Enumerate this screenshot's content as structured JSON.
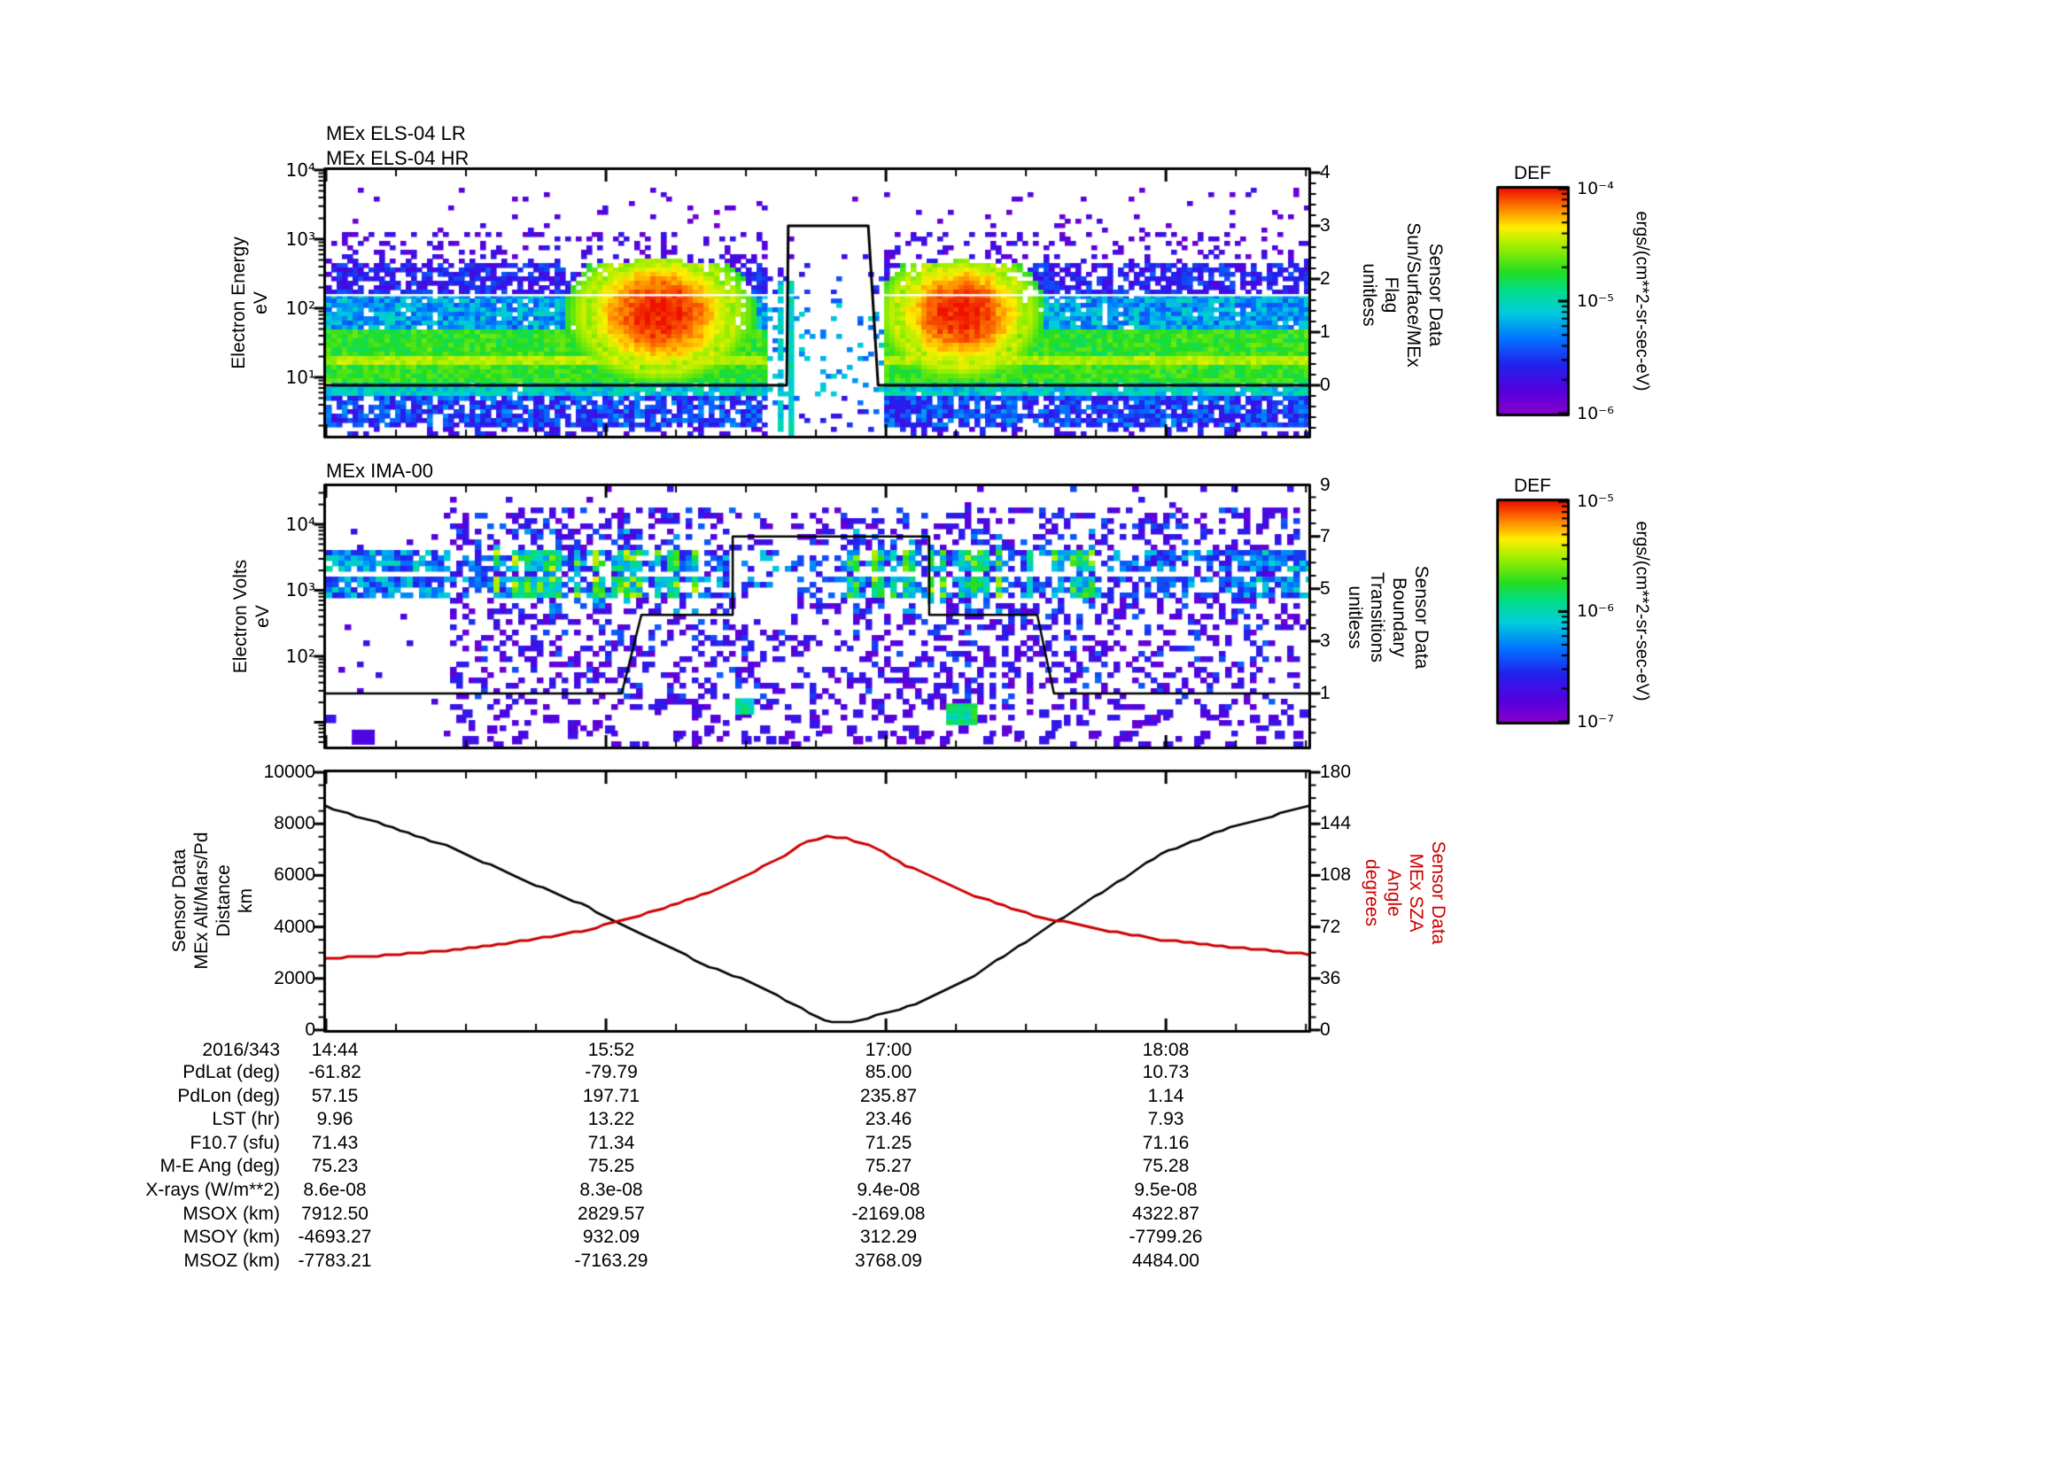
{
  "window": {
    "background": "#ffffff",
    "accent_red": "#cc0000"
  },
  "panels": {
    "els": {
      "title_lines": [
        "MEx ELS-04 LR",
        "MEx ELS-04 HR"
      ],
      "ylabel_lines": [
        "Electron Energy",
        "eV"
      ],
      "ytick_labels": [
        "10⁴",
        "10³",
        "10²",
        "10¹"
      ],
      "right_axis_labels": [
        "4",
        "3",
        "2",
        "1",
        "0"
      ],
      "right_label_lines": [
        "Sensor Data",
        "Sun/Surface/MEx",
        "Flag",
        "unitless"
      ]
    },
    "ima": {
      "title_lines": [
        "MEx IMA-00"
      ],
      "ylabel_lines": [
        "Electron Volts",
        "eV"
      ],
      "ytick_labels": [
        "10⁴",
        "10³",
        "10²"
      ],
      "right_axis_labels": [
        "9",
        "7",
        "5",
        "3",
        "1"
      ],
      "right_label_lines": [
        "Sensor Data",
        "Boundary",
        "Transitions",
        "unitless"
      ]
    },
    "ephemeris": {
      "ylabel_lines": [
        "Sensor Data",
        "MEx Alt/Mars/Pd",
        "Distance",
        "km"
      ],
      "ytick_labels": [
        "10000",
        "8000",
        "6000",
        "4000",
        "2000",
        "0"
      ],
      "right_axis_labels": [
        "180",
        "144",
        "108",
        "72",
        "36",
        "0"
      ],
      "right_label_lines": [
        "Sensor Data",
        "MEx SZA",
        "Angle",
        "degrees"
      ],
      "right_label_color": "#cc0000"
    }
  },
  "colorbars": [
    {
      "title": "DEF",
      "tick_labels": [
        "10⁻⁴",
        "10⁻⁵",
        "10⁻⁶"
      ],
      "unit_label": "ergs/(cm**2-sr-sec-eV)"
    },
    {
      "title": "DEF",
      "tick_labels": [
        "10⁻⁵",
        "10⁻⁶",
        "10⁻⁷"
      ],
      "unit_label": "ergs/(cm**2-sr-sec-eV)"
    }
  ],
  "time_axis": {
    "date_label": "2016/343",
    "tick_labels": [
      "14:44",
      "15:52",
      "17:00",
      "18:08"
    ]
  },
  "ephemeris_table": {
    "row_labels": [
      "PdLat (deg)",
      "PdLon (deg)",
      "LST (hr)",
      "F10.7 (sfu)",
      "M-E Ang (deg)",
      "X-rays (W/m**2)",
      "MSOX (km)",
      "MSOY (km)",
      "MSOZ (km)"
    ],
    "columns": [
      {
        "time": "14:44",
        "values": [
          "-61.82",
          "57.15",
          "9.96",
          "71.43",
          "75.23",
          "8.6e-08",
          "7912.50",
          "-4693.27",
          "-7783.21"
        ]
      },
      {
        "time": "15:52",
        "values": [
          "-79.79",
          "197.71",
          "13.22",
          "71.34",
          "75.25",
          "8.3e-08",
          "2829.57",
          "932.09",
          "-7163.29"
        ]
      },
      {
        "time": "17:00",
        "values": [
          "85.00",
          "235.87",
          "23.46",
          "71.25",
          "75.27",
          "9.4e-08",
          "-2169.08",
          "312.29",
          "3768.09"
        ]
      },
      {
        "time": "18:08",
        "values": [
          "10.73",
          "1.14",
          "7.93",
          "71.16",
          "75.28",
          "9.5e-08",
          "4322.87",
          "-7799.26",
          "4484.00"
        ]
      }
    ]
  },
  "chart_data": [
    {
      "type": "heatmap",
      "title": "MEx ELS-04 LR",
      "subtitle": "MEx ELS-04 HR",
      "ylabel": "Electron Energy eV",
      "yscale": "log",
      "ytick_values": [
        10000,
        1000,
        100,
        10
      ],
      "x_start": "2016/343 14:44",
      "x_ticks": [
        "14:44",
        "15:52",
        "17:00",
        "18:08"
      ],
      "colorbar": {
        "title": "DEF",
        "unit": "ergs/(cm**2-sr-sec-eV)",
        "min": 1e-06,
        "max": 0.0001
      },
      "description": "Electron energy-time spectrogram: continuous green flux band ~3-100 eV, red enhancements (~1e-4) near 15:45-16:10 and 16:55-17:20 at 30-120 eV, data gap ~16:35-16:55, scattered violet counts up to ~1 keV, thin white line near 150 eV",
      "overlay": {
        "name": "Sensor Data Sun/Surface/MEx Flag",
        "unit": "unitless",
        "axis_range": [
          0,
          4
        ],
        "points_fraction_value": [
          [
            0,
            0
          ],
          [
            0.469,
            0
          ],
          [
            0.4705,
            3
          ],
          [
            0.552,
            3
          ],
          [
            0.562,
            0
          ],
          [
            1,
            0
          ]
        ]
      },
      "render": {
        "cell": [
          6,
          5
        ],
        "bands": [
          {
            "t": [
              0.965,
              1.0
            ],
            "d": 0.25,
            "v": [
              0.08,
              0.26
            ]
          },
          {
            "t": [
              0.855,
              0.965
            ],
            "d": 0.78,
            "v": [
              0.14,
              0.38
            ]
          },
          {
            "t": [
              0.805,
              0.855
            ],
            "d": 0.95,
            "v": [
              0.38,
              0.55
            ]
          },
          {
            "t": [
              0.6,
              0.805
            ],
            "d": 1.0,
            "v": [
              0.58,
              0.7
            ]
          },
          {
            "t": [
              0.695,
              0.74
            ],
            "d": 1.0,
            "v": [
              0.72,
              0.8
            ]
          },
          {
            "t": [
              0.465,
              0.6
            ],
            "d": 0.96,
            "v": [
              0.28,
              0.5
            ]
          },
          {
            "t": [
              0.355,
              0.465
            ],
            "d": 0.7,
            "v": [
              0.1,
              0.3
            ]
          },
          {
            "t": [
              0.235,
              0.355
            ],
            "d": 0.22,
            "v": [
              0.05,
              0.2
            ]
          },
          {
            "t": [
              0.06,
              0.235
            ],
            "d": 0.045,
            "v": [
              0.04,
              0.16
            ]
          }
        ],
        "blobs": [
          {
            "f": 0.34,
            "t": 0.54,
            "rf": 0.075,
            "rt": 0.21
          },
          {
            "f": 0.646,
            "t": 0.54,
            "rf": 0.066,
            "rt": 0.2
          }
        ],
        "gap": {
          "f": [
            0.448,
            0.568
          ],
          "keep": 0.13,
          "streaks": [
            0.462,
            0.474
          ]
        },
        "white_line_t": 0.467
      }
    },
    {
      "type": "heatmap",
      "title": "MEx IMA-00",
      "ylabel": "Electron Volts eV",
      "yscale": "log",
      "ytick_values": [
        10000,
        1000,
        100
      ],
      "colorbar": {
        "title": "DEF",
        "unit": "ergs/(cm**2-sr-sec-eV)",
        "min": 1e-07,
        "max": 1e-05
      },
      "description": "Ion energy-time spectrogram: sparse violet counts over most of interval, persistent 1-3.5 keV horizontal band with cyan/green vertical streaks, banded flux strips at both time edges, chunky violet blocks at lowest energies",
      "overlay": {
        "name": "Sensor Data Boundary Transitions",
        "unit": "unitless",
        "axis_range": [
          0,
          9
        ],
        "points_fraction_value": [
          [
            0,
            1
          ],
          [
            0.301,
            1
          ],
          [
            0.321,
            4
          ],
          [
            0.414,
            4
          ],
          [
            0.414,
            7
          ],
          [
            0.614,
            7
          ],
          [
            0.614,
            4
          ],
          [
            0.724,
            4
          ],
          [
            0.741,
            1
          ],
          [
            1,
            1
          ]
        ]
      },
      "render": {
        "cell": [
          7,
          6
        ],
        "field": {
          "f": [
            0.128,
            0.985
          ],
          "d": 0.33,
          "v": [
            0.05,
            0.22
          ]
        },
        "bands": [
          {
            "t": [
              0.24,
              0.325
            ]
          },
          {
            "t": [
              0.35,
              0.425
            ]
          }
        ],
        "edge_strips": {
          "left_end": 0.128,
          "right_start": 0.925,
          "d": 0.85,
          "v": [
            0.2,
            0.52
          ]
        },
        "band_boost": {
          "d": 0.25,
          "v": [
            0.12,
            0.45
          ]
        },
        "streaks": {
          "regions": [
            [
              0.17,
              0.38
            ],
            [
              0.52,
              0.8
            ]
          ],
          "prob": 0.5,
          "t": [
            0.16,
            0.5
          ],
          "v": [
            0.35,
            0.88
          ]
        },
        "bottom": {
          "t": [
            0.86,
            1.0
          ],
          "d": 0.18,
          "v": [
            0.06,
            0.2
          ]
        },
        "top_fade_t": 0.075,
        "gap": {
          "f": [
            0.4,
            0.52
          ],
          "t_max": 0.55,
          "factor": 0.5
        },
        "cyan_blobs": [
          {
            "f": 0.426,
            "t": 0.845,
            "w": 3,
            "h": 3,
            "v": 0.5
          },
          {
            "f": 0.647,
            "t": 0.875,
            "w": 5,
            "h": 4,
            "v": 0.55
          }
        ],
        "purple_block": {
          "f": 0.038,
          "t": 0.935,
          "w": 26,
          "h": 17
        },
        "sparse_d": 0.022
      }
    },
    {
      "type": "line",
      "x_start": "2016/343 14:44",
      "x_ticks": [
        "14:44",
        "15:52",
        "17:00",
        "18:08"
      ],
      "left_axis": {
        "label": "Sensor Data MEx Alt/Mars/Pd Distance km",
        "range": [
          0,
          10000
        ]
      },
      "right_axis": {
        "label": "Sensor Data MEx SZA Angle degrees",
        "range": [
          0,
          180
        ]
      },
      "series": [
        {
          "name": "MEx Alt/Mars/Pd Distance",
          "unit": "km",
          "axis": "left",
          "color": "#000000",
          "points_fraction_value": [
            [
              0,
              8680
            ],
            [
              0.06,
              7950
            ],
            [
              0.13,
              7050
            ],
            [
              0.19,
              6000
            ],
            [
              0.26,
              4890
            ],
            [
              0.32,
              3720
            ],
            [
              0.39,
              2470
            ],
            [
              0.43,
              1900
            ],
            [
              0.46,
              1320
            ],
            [
              0.5,
              520
            ],
            [
              0.515,
              300
            ],
            [
              0.535,
              290
            ],
            [
              0.56,
              560
            ],
            [
              0.6,
              1000
            ],
            [
              0.66,
              2130
            ],
            [
              0.72,
              3620
            ],
            [
              0.79,
              5350
            ],
            [
              0.85,
              6840
            ],
            [
              0.92,
              7870
            ],
            [
              1,
              8680
            ]
          ]
        },
        {
          "name": "MEx SZA Angle",
          "unit": "degrees",
          "axis": "right",
          "color": "#cc0000",
          "points_fraction_value": [
            [
              0,
              50
            ],
            [
              0.06,
              52
            ],
            [
              0.13,
              56
            ],
            [
              0.19,
              61
            ],
            [
              0.26,
              69
            ],
            [
              0.32,
              80
            ],
            [
              0.39,
              96
            ],
            [
              0.46,
              119
            ],
            [
              0.49,
              132
            ],
            [
              0.51,
              135
            ],
            [
              0.53,
              134
            ],
            [
              0.56,
              127
            ],
            [
              0.59,
              115
            ],
            [
              0.66,
              94
            ],
            [
              0.72,
              80
            ],
            [
              0.79,
              70
            ],
            [
              0.85,
              63
            ],
            [
              0.92,
              58
            ],
            [
              1,
              53
            ]
          ]
        }
      ]
    },
    {
      "type": "table",
      "name": "ephemeris-values",
      "column_times": [
        "14:44",
        "15:52",
        "17:00",
        "18:08"
      ],
      "rows": [
        {
          "label": "PdLat (deg)",
          "values": [
            "-61.82",
            "-79.79",
            "85.00",
            "10.73"
          ]
        },
        {
          "label": "PdLon (deg)",
          "values": [
            "57.15",
            "197.71",
            "235.87",
            "1.14"
          ]
        },
        {
          "label": "LST (hr)",
          "values": [
            "9.96",
            "13.22",
            "23.46",
            "7.93"
          ]
        },
        {
          "label": "F10.7 (sfu)",
          "values": [
            "71.43",
            "71.34",
            "71.25",
            "71.16"
          ]
        },
        {
          "label": "M-E Ang (deg)",
          "values": [
            "75.23",
            "75.25",
            "75.27",
            "75.28"
          ]
        },
        {
          "label": "X-rays (W/m**2)",
          "values": [
            "8.6e-08",
            "8.3e-08",
            "9.4e-08",
            "9.5e-08"
          ]
        },
        {
          "label": "MSOX (km)",
          "values": [
            "7912.50",
            "2829.57",
            "-2169.08",
            "4322.87"
          ]
        },
        {
          "label": "MSOY (km)",
          "values": [
            "-4693.27",
            "932.09",
            "312.29",
            "-7799.26"
          ]
        },
        {
          "label": "MSOZ (km)",
          "values": [
            "-7783.21",
            "-7163.29",
            "3768.09",
            "4484.00"
          ]
        }
      ]
    }
  ]
}
